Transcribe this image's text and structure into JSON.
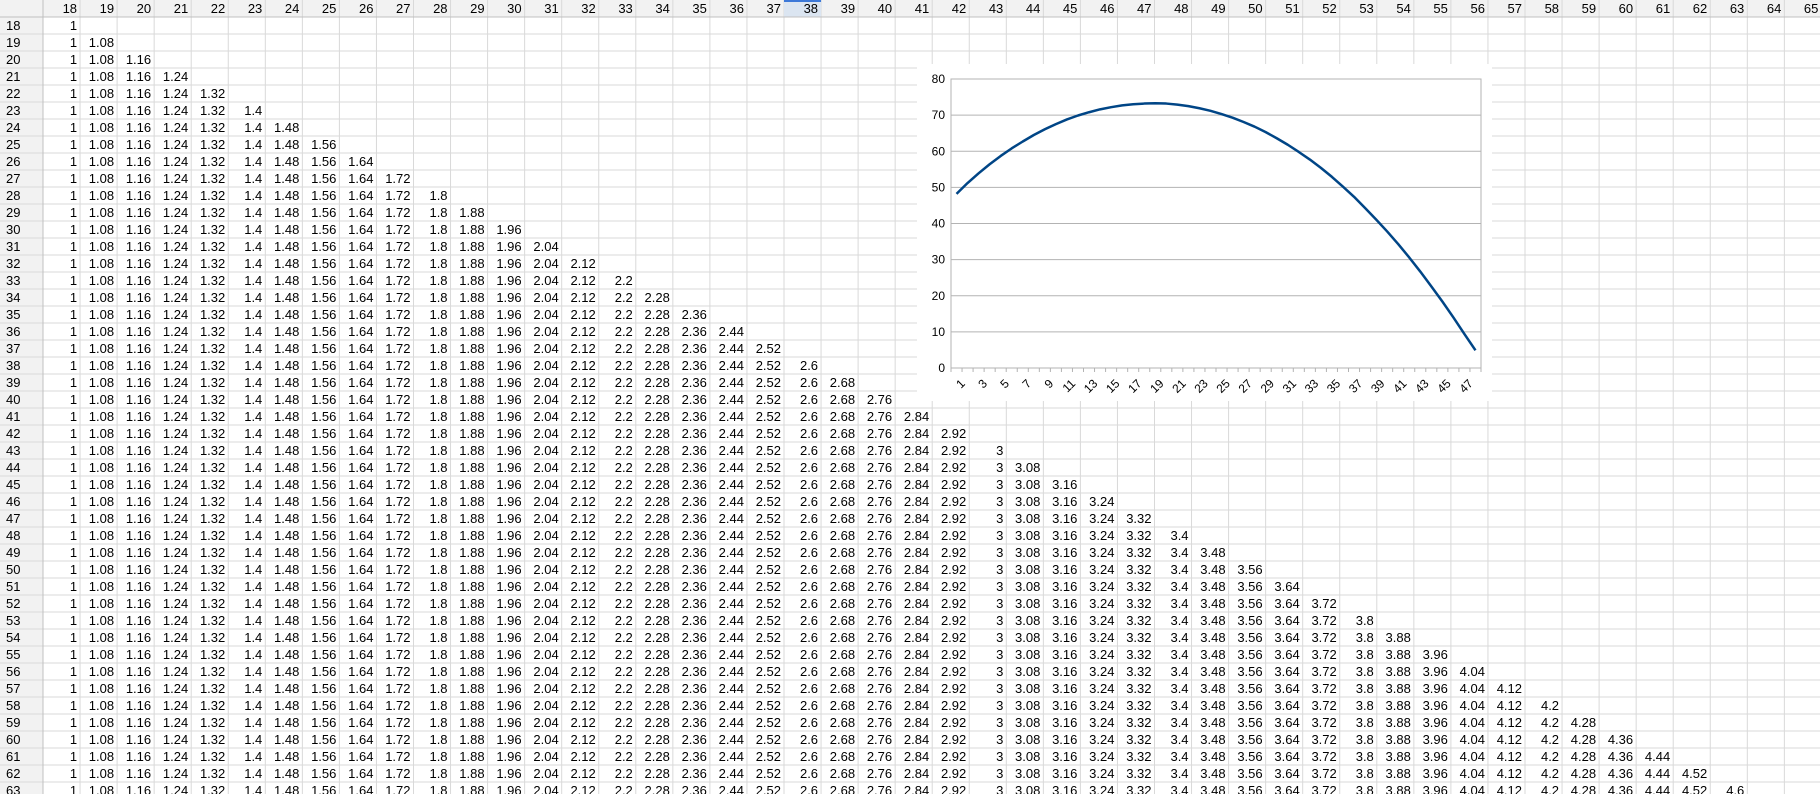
{
  "sheet": {
    "first_column_label": 18,
    "last_column_label": 65,
    "first_row_label": 18,
    "last_row_label": 63,
    "selected_column_label": 38,
    "row_values": [
      "1",
      "1.08",
      "1.16",
      "1.24",
      "1.32",
      "1.4",
      "1.48",
      "1.56",
      "1.64",
      "1.72",
      "1.8",
      "1.88",
      "1.96",
      "2.04",
      "2.12",
      "2.2",
      "2.28",
      "2.36",
      "2.44",
      "2.52",
      "2.6",
      "2.68",
      "2.76",
      "2.84",
      "2.92",
      "3",
      "3.08",
      "3.16",
      "3.24",
      "3.32",
      "3.4",
      "3.48",
      "3.56",
      "3.64",
      "3.72",
      "3.8",
      "3.88",
      "3.96",
      "4.04",
      "4.12",
      "4.2",
      "4.28",
      "4.36",
      "4.44",
      "4.52",
      "4.6"
    ],
    "colors": {
      "grid": "#d9d9d9",
      "header_bg": "#f2f2f2",
      "header_border": "#c0c0c0",
      "selected_header": "#dbe5f1",
      "text": "#000000"
    }
  },
  "chart_data": {
    "type": "line",
    "x": [
      1,
      2,
      3,
      4,
      5,
      6,
      7,
      8,
      9,
      10,
      11,
      12,
      13,
      14,
      15,
      16,
      17,
      18,
      19,
      20,
      21,
      22,
      23,
      24,
      25,
      26,
      27,
      28,
      29,
      30,
      31,
      32,
      33,
      34,
      35,
      36,
      37,
      38,
      39,
      40,
      41,
      42,
      43,
      44,
      45,
      46,
      47,
      48
    ],
    "values": [
      48.2,
      51.2,
      53.9,
      56.4,
      58.7,
      60.8,
      62.7,
      64.5,
      66.1,
      67.5,
      68.8,
      69.9,
      70.8,
      71.6,
      72.2,
      72.7,
      73.0,
      73.2,
      73.3,
      73.2,
      72.9,
      72.5,
      71.9,
      71.2,
      70.3,
      69.3,
      68.1,
      66.8,
      65.3,
      63.6,
      61.8,
      59.8,
      57.7,
      55.4,
      52.9,
      50.2,
      47.4,
      44.3,
      41.1,
      37.8,
      34.3,
      30.6,
      26.7,
      22.6,
      18.4,
      14.0,
      9.4,
      4.9
    ],
    "x_tick_labels": [
      "1",
      "3",
      "5",
      "7",
      "9",
      "11",
      "13",
      "15",
      "17",
      "19",
      "21",
      "23",
      "25",
      "27",
      "29",
      "31",
      "33",
      "35",
      "37",
      "39",
      "41",
      "43",
      "45",
      "47"
    ],
    "y_ticks": [
      0,
      10,
      20,
      30,
      40,
      50,
      60,
      70,
      80
    ],
    "ylim": [
      0,
      80
    ],
    "grid": true,
    "legend": "none",
    "title": "",
    "xlabel": "",
    "ylabel": "",
    "series_color": "#004586"
  }
}
